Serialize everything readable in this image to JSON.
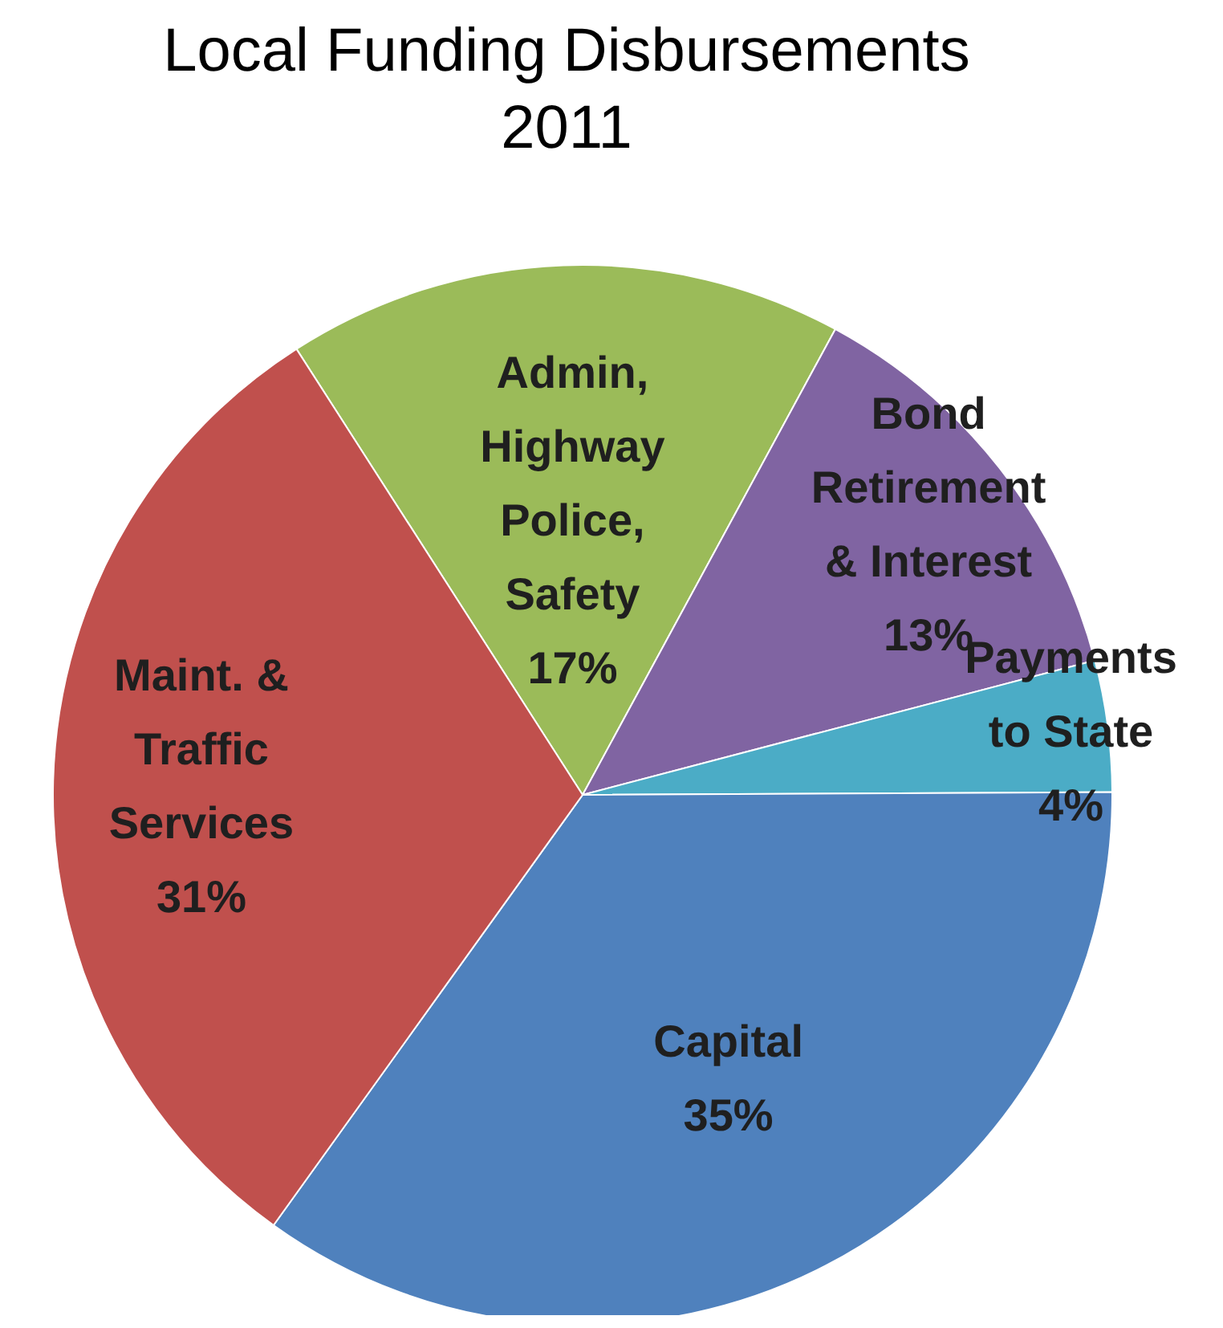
{
  "chart_data": {
    "type": "pie",
    "title": "Local Funding Disbursements\n2011",
    "categories": [
      "Admin, Highway Police, Safety",
      "Bond Retirement & Interest",
      "Payments to State",
      "Capital",
      "Maint. & Traffic Services"
    ],
    "values": [
      17,
      13,
      4,
      35,
      31
    ],
    "value_labels": [
      "17%",
      "13%",
      "4%",
      "35%",
      "31%"
    ],
    "colors": [
      "#9bbb59",
      "#8064a2",
      "#4bacc6",
      "#4f81bd",
      "#c0504d"
    ]
  }
}
